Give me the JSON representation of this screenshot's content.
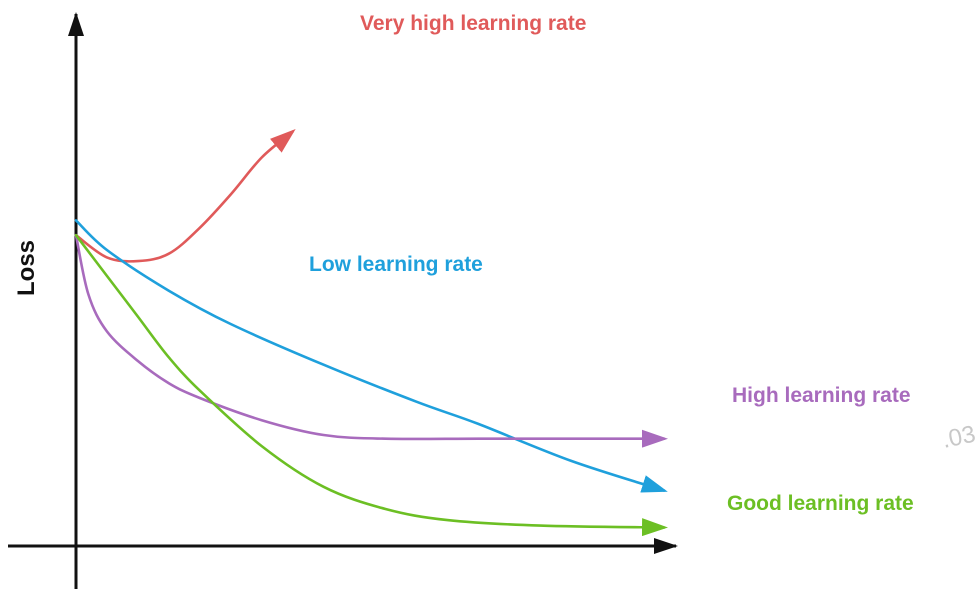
{
  "chart_data": {
    "type": "line",
    "title": "",
    "xlabel": "",
    "ylabel": "Loss",
    "watermark": ".03",
    "axis_color": "#111111",
    "series": [
      {
        "name": "Very high learning rate",
        "color": "#e05a5a",
        "points": [
          [
            0,
            0.84
          ],
          [
            1,
            0.78
          ],
          [
            2,
            0.77
          ],
          [
            3,
            0.79
          ],
          [
            4,
            0.86
          ],
          [
            5,
            0.95
          ],
          [
            6,
            1.05
          ],
          [
            7,
            1.12
          ]
        ]
      },
      {
        "name": "Low learning rate",
        "color": "#1fa0dc",
        "points": [
          [
            0,
            0.88
          ],
          [
            1,
            0.8
          ],
          [
            3,
            0.69
          ],
          [
            5,
            0.6
          ],
          [
            8,
            0.49
          ],
          [
            11,
            0.39
          ],
          [
            13,
            0.33
          ],
          [
            16,
            0.23
          ],
          [
            19,
            0.15
          ]
        ]
      },
      {
        "name": "High learning rate",
        "color": "#a86bbd",
        "points": [
          [
            0,
            0.84
          ],
          [
            0.4,
            0.68
          ],
          [
            1,
            0.58
          ],
          [
            2,
            0.5
          ],
          [
            3,
            0.44
          ],
          [
            4,
            0.4
          ],
          [
            6,
            0.34
          ],
          [
            8,
            0.3
          ],
          [
            10,
            0.29
          ],
          [
            13,
            0.29
          ],
          [
            16,
            0.29
          ],
          [
            19,
            0.29
          ]
        ]
      },
      {
        "name": "Good learning rate",
        "color": "#6cbf24",
        "points": [
          [
            0,
            0.84
          ],
          [
            1,
            0.73
          ],
          [
            2,
            0.62
          ],
          [
            3,
            0.51
          ],
          [
            4,
            0.42
          ],
          [
            6,
            0.27
          ],
          [
            8,
            0.16
          ],
          [
            10,
            0.1
          ],
          [
            12,
            0.07
          ],
          [
            15,
            0.055
          ],
          [
            19,
            0.05
          ]
        ]
      }
    ]
  }
}
